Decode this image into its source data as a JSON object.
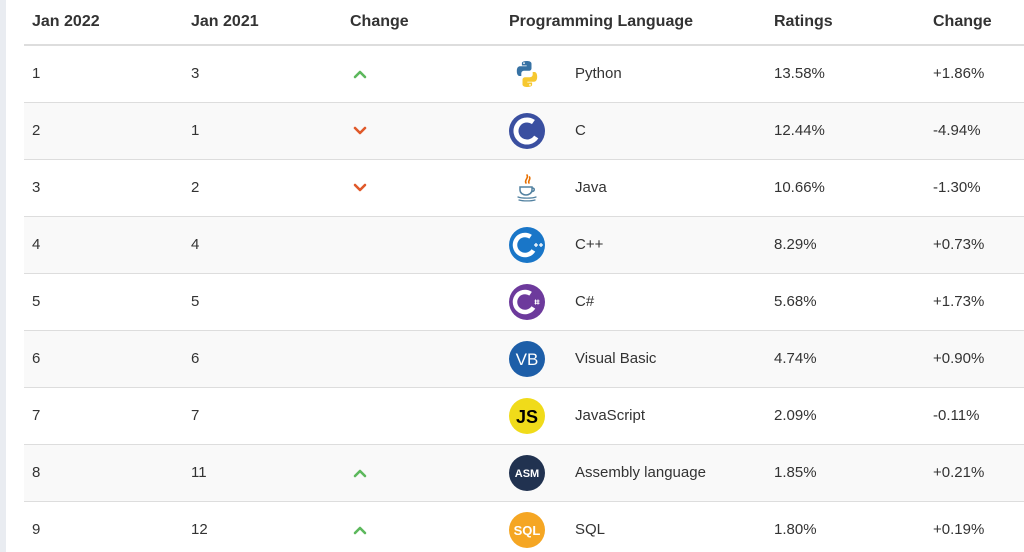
{
  "headers": {
    "current": "Jan 2022",
    "previous": "Jan 2021",
    "change": "Change",
    "language": "Programming Language",
    "ratings": "Ratings",
    "change_pct": "Change"
  },
  "rows": [
    {
      "current": "1",
      "previous": "3",
      "trend": "up",
      "icon": "python-logo-icon",
      "language": "Python",
      "rating": "13.58%",
      "change": "+1.86%"
    },
    {
      "current": "2",
      "previous": "1",
      "trend": "down",
      "icon": "c-logo-icon",
      "language": "C",
      "rating": "12.44%",
      "change": "-4.94%"
    },
    {
      "current": "3",
      "previous": "2",
      "trend": "down",
      "icon": "java-logo-icon",
      "language": "Java",
      "rating": "10.66%",
      "change": "-1.30%"
    },
    {
      "current": "4",
      "previous": "4",
      "trend": "none",
      "icon": "cpp-logo-icon",
      "language": "C++",
      "rating": "8.29%",
      "change": "+0.73%"
    },
    {
      "current": "5",
      "previous": "5",
      "trend": "none",
      "icon": "csharp-logo-icon",
      "language": "C#",
      "rating": "5.68%",
      "change": "+1.73%"
    },
    {
      "current": "6",
      "previous": "6",
      "trend": "none",
      "icon": "visual-basic-logo-icon",
      "language": "Visual Basic",
      "rating": "4.74%",
      "change": "+0.90%"
    },
    {
      "current": "7",
      "previous": "7",
      "trend": "none",
      "icon": "javascript-logo-icon",
      "language": "JavaScript",
      "rating": "2.09%",
      "change": "-0.11%"
    },
    {
      "current": "8",
      "previous": "11",
      "trend": "up",
      "icon": "assembly-logo-icon",
      "language": "Assembly language",
      "rating": "1.85%",
      "change": "+0.21%"
    },
    {
      "current": "9",
      "previous": "12",
      "trend": "up",
      "icon": "sql-logo-icon",
      "language": "SQL",
      "rating": "1.80%",
      "change": "+0.19%"
    }
  ],
  "colors": {
    "up": "#5cb85c",
    "down": "#e0592a",
    "c_blue": "#3a4fa0",
    "cpp_blue": "#1976c8",
    "csharp_purple": "#6d3a9c",
    "vb_blue": "#1d5ea8",
    "js_yellow": "#f0db1a",
    "asm_dark": "#213250",
    "sql_orange": "#f5a623"
  },
  "logo_text": {
    "vb": "VB",
    "js": "JS",
    "asm": "ASM",
    "sql": "SQL"
  }
}
